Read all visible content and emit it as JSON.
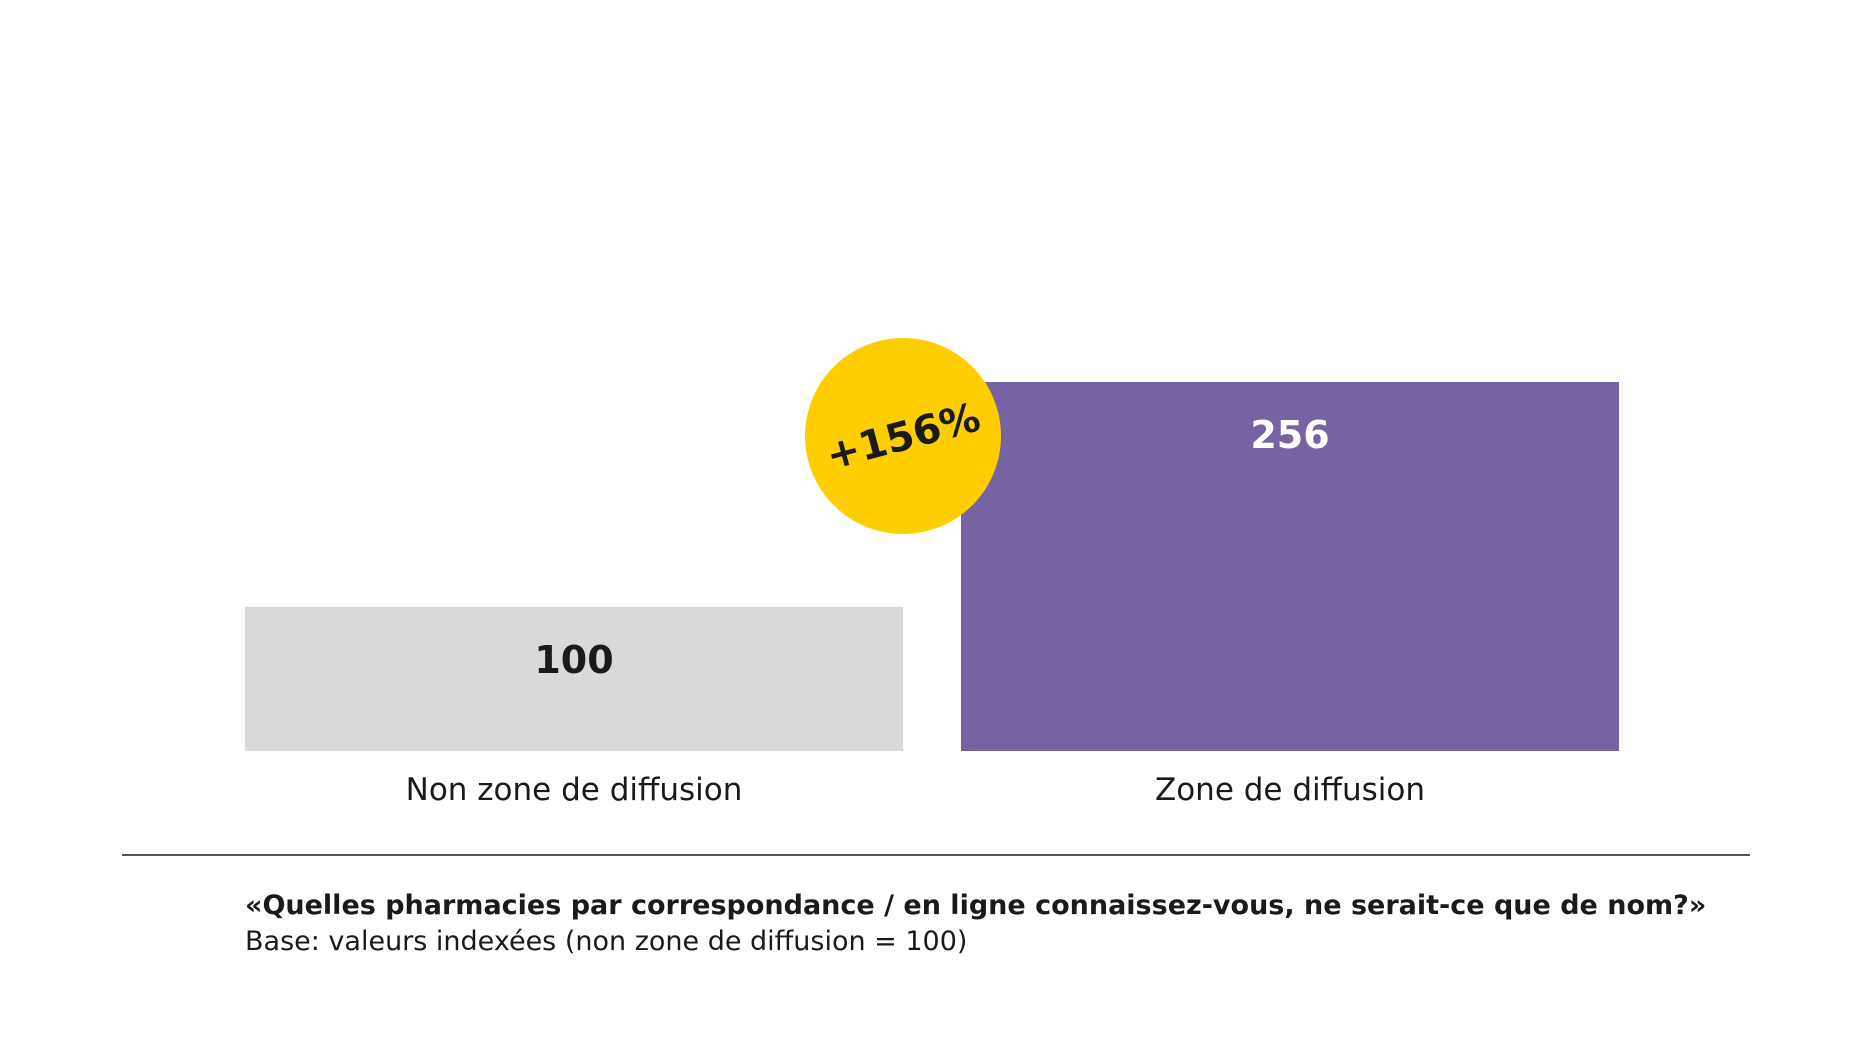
{
  "chart_data": {
    "type": "bar",
    "categories": [
      "Non zone de diffusion",
      "Zone de diffusion"
    ],
    "values": [
      100,
      256
    ],
    "value_labels": [
      "100",
      "256"
    ],
    "colors": [
      "#d9d9d9",
      "#7763a3"
    ],
    "label_colors": [
      "#1a1a1a",
      "#ffffff"
    ],
    "ylim": [
      0,
      256
    ],
    "grid": false,
    "badge": {
      "text": "+156%",
      "color": "#fecf00",
      "text_color": "#1a1a1a"
    }
  },
  "footnote": {
    "question": "«Quelles pharmacies par correspondance / en ligne connaissez-vous, ne serait-ce que de nom?»",
    "base": "Base: valeurs indexées (non zone de diffusion = 100)"
  }
}
